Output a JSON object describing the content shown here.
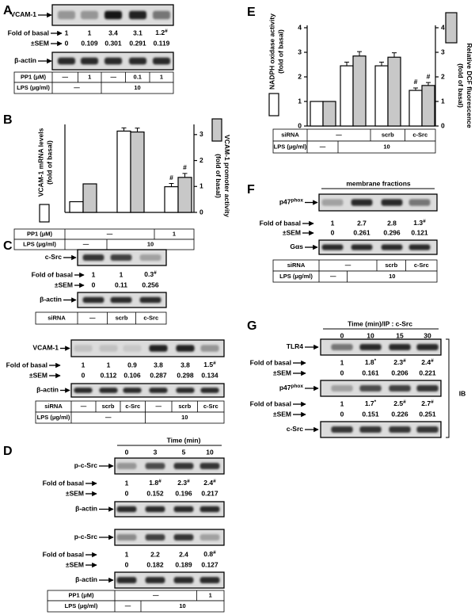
{
  "panels": {
    "A": {
      "label": "A",
      "rows": [
        {
          "blot": "VCAM-1"
        },
        {
          "stat": "Fold of basal",
          "values": [
            "1",
            "1",
            "3.4",
            "3.1",
            "1.2#"
          ]
        },
        {
          "stat": "±SEM",
          "values": [
            "0",
            "0.109",
            "0.301",
            "0.291",
            "0.119"
          ]
        },
        {
          "blot": "β-actin"
        },
        {
          "table_row": "PP1 (μM)",
          "cells": [
            "—",
            "1",
            "—",
            "0.1",
            "1"
          ]
        },
        {
          "table_row": "LPS (μg/ml)",
          "cells": [
            "—",
            "10"
          ]
        }
      ]
    },
    "B": {
      "label": "B",
      "rows": [
        {
          "table_row": "PP1 (μM)",
          "cells": [
            "—",
            "1"
          ]
        },
        {
          "table_row": "LPS (μg/ml)",
          "cells": [
            "—",
            "10"
          ]
        }
      ]
    },
    "C": {
      "label": "C",
      "rows": [
        {
          "blot": "c-Src"
        },
        {
          "stat": "Fold of basal",
          "values": [
            "1",
            "1",
            "0.3#"
          ]
        },
        {
          "stat": "±SEM",
          "values": [
            "0",
            "0.11",
            "0.256"
          ]
        },
        {
          "blot": "β-actin"
        },
        {
          "table_row": "siRNA",
          "cells": [
            "—",
            "scrb",
            "c-Src"
          ]
        },
        {
          "blot": "VCAM-1"
        },
        {
          "stat": "Fold of basal",
          "values": [
            "1",
            "1",
            "0.9",
            "3.8",
            "3.8",
            "1.5#"
          ]
        },
        {
          "stat": "±SEM",
          "values": [
            "0",
            "0.112",
            "0.106",
            "0.287",
            "0.298",
            "0.134"
          ]
        },
        {
          "blot": "β-actin"
        },
        {
          "table_row": "siRNA",
          "cells": [
            "—",
            "scrb",
            "c-Src",
            "—",
            "scrb",
            "c-Src"
          ]
        },
        {
          "table_row": "LPS (μg/ml)",
          "cells": [
            "—",
            "10"
          ]
        }
      ]
    },
    "D": {
      "label": "D",
      "rows": [
        {
          "header": "Time (min)",
          "cells": [
            "0",
            "3",
            "5",
            "10"
          ]
        },
        {
          "blot": "p-c-Src"
        },
        {
          "stat": "Fold of basal",
          "values": [
            "1",
            "1.8#",
            "2.3#",
            "2.4#"
          ]
        },
        {
          "stat": "±SEM",
          "values": [
            "0",
            "0.152",
            "0.196",
            "0.217"
          ]
        },
        {
          "blot": "β-actin"
        },
        {
          "blot": "p-c-Src"
        },
        {
          "stat": "Fold of basal",
          "values": [
            "1",
            "2.2",
            "2.4",
            "0.8#"
          ]
        },
        {
          "stat": "±SEM",
          "values": [
            "0",
            "0.182",
            "0.189",
            "0.127"
          ]
        },
        {
          "blot": "β-actin"
        },
        {
          "table_row": "PP1 (μM)",
          "cells": [
            "—",
            "1"
          ]
        },
        {
          "table_row": "LPS (μg/ml)",
          "cells": [
            "—",
            "10"
          ]
        }
      ]
    },
    "E": {
      "label": "E",
      "rows": [
        {
          "table_row": "siRNA",
          "cells": [
            "—",
            "scrb",
            "c-Src"
          ]
        },
        {
          "table_row": "LPS (μg/ml)",
          "cells": [
            "—",
            "10"
          ]
        }
      ]
    },
    "F": {
      "label": "F",
      "rows": [
        {
          "header": "membrane fractions"
        },
        {
          "blot": "p47",
          "sup": "phox"
        },
        {
          "stat": "Fold of basal",
          "values": [
            "1",
            "2.7",
            "2.8",
            "1.3#"
          ]
        },
        {
          "stat": "±SEM",
          "values": [
            "0",
            "0.261",
            "0.296",
            "0.121"
          ]
        },
        {
          "blot": "Gαs"
        },
        {
          "table_row": "siRNA",
          "cells": [
            "—",
            "scrb",
            "c-Src"
          ]
        },
        {
          "table_row": "LPS (μg/ml)",
          "cells": [
            "—",
            "10"
          ]
        }
      ]
    },
    "G": {
      "label": "G",
      "side_label": "IB",
      "rows": [
        {
          "header": "Time (min)/IP : c-Src",
          "cells": [
            "0",
            "10",
            "15",
            "30"
          ]
        },
        {
          "blot": "TLR4"
        },
        {
          "stat": "Fold of basal",
          "values": [
            "1",
            "1.8*",
            "2.3#",
            "2.4#"
          ]
        },
        {
          "stat": "±SEM",
          "values": [
            "0",
            "0.161",
            "0.206",
            "0.221"
          ]
        },
        {
          "blot": "p47",
          "sup": "phox"
        },
        {
          "stat": "Fold of basal",
          "values": [
            "1",
            "1.7*",
            "2.5#",
            "2.7#"
          ]
        },
        {
          "stat": "±SEM",
          "values": [
            "0",
            "0.151",
            "0.226",
            "0.251"
          ]
        },
        {
          "blot": "c-Src"
        }
      ]
    }
  },
  "chart_data": [
    {
      "type": "bar",
      "categories": [
        null,
        null,
        null
      ],
      "ylabel": [
        "VCAM-1 mRNA levels",
        "(fold of basal)"
      ],
      "y2label": [
        "VCAM-1 promoter activity",
        "(fold of basal)"
      ],
      "ylim": [
        0,
        8
      ],
      "y2lim": [
        0,
        3.3
      ],
      "y2ticks": [
        0,
        1,
        2,
        3
      ],
      "series": [
        {
          "color": "#ffffff",
          "values": [
            1,
            7.6,
            2.4
          ],
          "errors": [
            0,
            0.3,
            0.3
          ],
          "marks": [
            null,
            null,
            "#"
          ]
        },
        {
          "color": "#c8c8c8",
          "axis": "y2",
          "values": [
            1.1,
            3.1,
            1.35
          ],
          "errors": [
            0,
            0.15,
            0.15
          ],
          "marks": [
            null,
            null,
            "#"
          ]
        }
      ]
    },
    {
      "type": "bar",
      "categories": [
        null,
        null,
        null,
        null
      ],
      "ylabel": [
        "NADPH oxidase activity",
        "(fold of basal)"
      ],
      "y2label": [
        "Relative DCF fluorescence",
        "(fold of basal)"
      ],
      "ylim": [
        0,
        4
      ],
      "yticks": [
        0,
        1,
        2,
        3,
        4
      ],
      "y2lim": [
        0,
        4
      ],
      "y2ticks": [
        0,
        1,
        2,
        3,
        4
      ],
      "series": [
        {
          "color": "#ffffff",
          "values": [
            1,
            2.45,
            2.45,
            1.45
          ],
          "errors": [
            0,
            0.15,
            0.15,
            0.1
          ],
          "marks": [
            null,
            null,
            null,
            "#"
          ]
        },
        {
          "color": "#c8c8c8",
          "axis": "y2",
          "values": [
            1,
            2.85,
            2.8,
            1.65
          ],
          "errors": [
            0,
            0.18,
            0.18,
            0.12
          ],
          "marks": [
            null,
            null,
            null,
            "#"
          ]
        }
      ]
    }
  ]
}
